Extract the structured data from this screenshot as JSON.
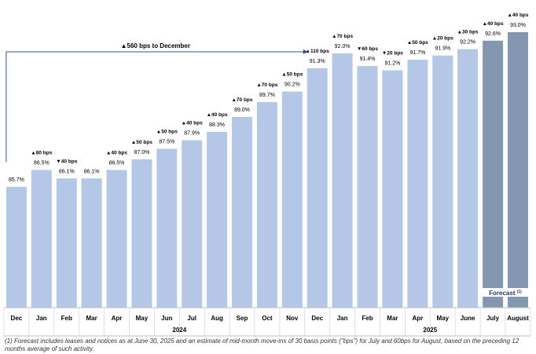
{
  "chart_data": {
    "type": "bar",
    "categories": [
      "Dec",
      "Jan",
      "Feb",
      "Mar",
      "Apr",
      "May",
      "Jun",
      "Jul",
      "Aug",
      "Sep",
      "Oct",
      "Nov",
      "Dec",
      "Jan",
      "Feb",
      "Mar",
      "Apr",
      "May",
      "June",
      "July",
      "August"
    ],
    "values": [
      85.7,
      86.5,
      86.1,
      86.1,
      86.5,
      87.0,
      87.5,
      87.9,
      88.3,
      89.0,
      89.7,
      90.2,
      91.3,
      92.0,
      91.4,
      91.2,
      91.7,
      91.9,
      92.2,
      92.6,
      93.0
    ],
    "value_labels": [
      "85.7%",
      "86.5%",
      "86.1%",
      "86.1%",
      "86.5%",
      "87.0%",
      "87.5%",
      "87.9%",
      "88.3%",
      "89.0%",
      "89.7%",
      "90.2%",
      "91.3%",
      "92.0%",
      "91.4%",
      "91.2%",
      "91.7%",
      "91.9%",
      "92.2%",
      "92.6%",
      "93.0%"
    ],
    "changes": [
      "",
      "▲80 bps",
      "▼40 bps",
      "",
      "▲40 bps",
      "▲50 bps",
      "▲50 bps",
      "▲40 bps",
      "▲40 bps",
      "▲70 bps",
      "▲70 bps",
      "▲50 bps",
      "▲110 bps",
      "▲70 bps",
      "▼60 bps",
      "▼20 bps",
      "▲50 bps",
      "▲20 bps",
      "▲30 bps",
      "▲40 bps",
      "▲40 bps"
    ],
    "forecast": [
      false,
      false,
      false,
      false,
      false,
      false,
      false,
      false,
      false,
      false,
      false,
      false,
      false,
      false,
      false,
      false,
      false,
      false,
      false,
      true,
      true
    ],
    "year_groups": [
      {
        "label": "2024",
        "start": 1,
        "end": 12
      },
      {
        "label": "2025",
        "start": 13,
        "end": 20
      }
    ],
    "annotation": "▲560 bps to December",
    "forecast_label": "Forecast",
    "forecast_sup": "(1)",
    "colors": {
      "actual": "#b4c7e7",
      "forecast": "#8497b0",
      "arrow": "#2f5597",
      "text": "#000000"
    }
  },
  "footnote": "(1) Forecast includes leases and notices as at June 30, 2025 and an estimate of mid-month move-ins of 30 basis points (\"bps\") for July and 60bps for August, based on the preceding 12 months average of such activity."
}
